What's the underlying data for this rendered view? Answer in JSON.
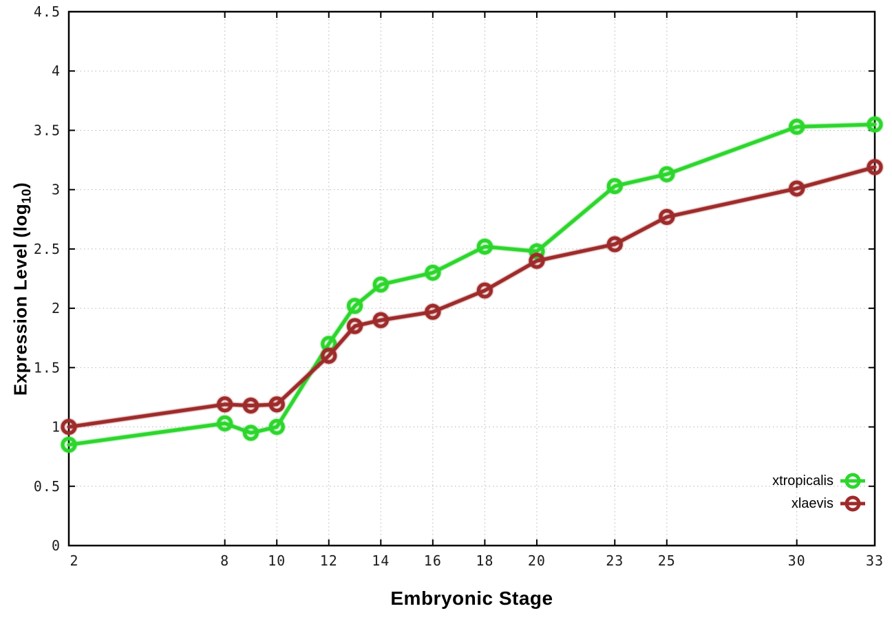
{
  "chart_data": {
    "type": "line",
    "title": "",
    "xlabel": "Embryonic Stage",
    "ylabel": "Expression Level (log10)",
    "ylabel_parts": {
      "main": "Expression Level (log",
      "sub": "10",
      "close": ")"
    },
    "xlim": [
      2,
      33
    ],
    "ylim": [
      0,
      4.5
    ],
    "x_tick_labels": [
      2,
      8,
      10,
      12,
      14,
      16,
      18,
      20,
      23,
      25,
      30,
      33
    ],
    "y_ticks": [
      0,
      0.5,
      1,
      1.5,
      2,
      2.5,
      3,
      3.5,
      4,
      4.5
    ],
    "grid": "dotted",
    "legend_position": "inside-bottom-right",
    "x": [
      2,
      8,
      9,
      10,
      12,
      13,
      14,
      16,
      18,
      20,
      23,
      25,
      30,
      33
    ],
    "series": [
      {
        "name": "xtropicalis",
        "color": "#2dd62d",
        "values": [
          0.85,
          1.03,
          0.95,
          1.0,
          1.7,
          2.02,
          2.2,
          2.3,
          2.52,
          2.48,
          3.03,
          3.13,
          3.53,
          3.55
        ]
      },
      {
        "name": "xlaevis",
        "color": "#9e2b2b",
        "values": [
          1.0,
          1.19,
          1.18,
          1.19,
          1.6,
          1.85,
          1.9,
          1.97,
          2.15,
          2.4,
          2.54,
          2.77,
          3.01,
          3.19
        ]
      }
    ],
    "colors": {
      "axis": "#000000",
      "grid": "#b5b5b5",
      "tick_text": "#1c1c1c",
      "background": "#ffffff"
    }
  }
}
